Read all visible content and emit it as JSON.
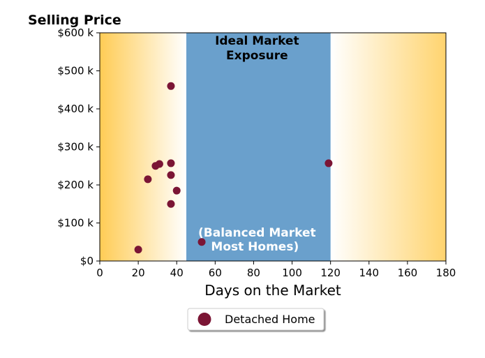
{
  "chart_data": {
    "type": "scatter",
    "title": "Selling Price",
    "xlabel": "Days on the Market",
    "ylabel": "",
    "xlim": [
      0,
      180
    ],
    "ylim": [
      0,
      600000
    ],
    "x_ticks": [
      0,
      20,
      40,
      60,
      80,
      100,
      120,
      140,
      160,
      180
    ],
    "x_tick_labels": [
      "0",
      "20",
      "40",
      "60",
      "80",
      "100",
      "120",
      "140",
      "160",
      "180"
    ],
    "y_ticks": [
      0,
      100000,
      200000,
      300000,
      400000,
      500000,
      600000
    ],
    "y_tick_labels": [
      "$0",
      "$100 k",
      "$200 k",
      "$300 k",
      "$400 k",
      "$500 k",
      "$600 k"
    ],
    "grid": false,
    "legend_position": "bottom-center",
    "band": {
      "x_start": 45,
      "x_end": 120,
      "color": "#6aa0cc",
      "label_top_line1": "Ideal Market",
      "label_top_line2": "Exposure",
      "label_bottom_line1": "(Balanced Market",
      "label_bottom_line2": "Most Homes)"
    },
    "background_gradient_color": "#ffcc55",
    "series": [
      {
        "name": "Detached Home",
        "color": "#7b1535",
        "points": [
          {
            "x": 20,
            "y": 30000
          },
          {
            "x": 25,
            "y": 215000
          },
          {
            "x": 29,
            "y": 250000
          },
          {
            "x": 31,
            "y": 255000
          },
          {
            "x": 37,
            "y": 460000
          },
          {
            "x": 37,
            "y": 257000
          },
          {
            "x": 37,
            "y": 226000
          },
          {
            "x": 37,
            "y": 150000
          },
          {
            "x": 40,
            "y": 185000
          },
          {
            "x": 53,
            "y": 50000
          },
          {
            "x": 119,
            "y": 257000
          }
        ]
      }
    ]
  }
}
